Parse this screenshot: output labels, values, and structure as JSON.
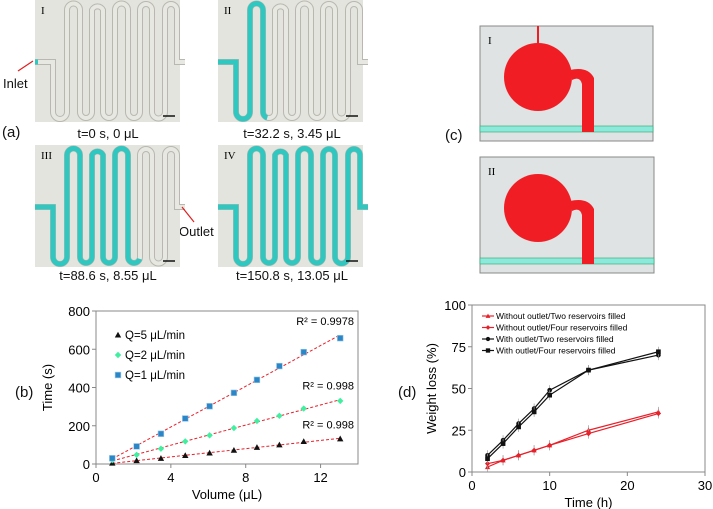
{
  "panel_a": {
    "label": "(a)",
    "inlet_label": "Inlet",
    "outlet_label": "Outlet",
    "photos": [
      {
        "roman": "I",
        "caption": "t=0 s, 0 μL",
        "fill_fraction": 0.0
      },
      {
        "roman": "II",
        "caption": "t=32.2 s, 3.45 μL",
        "fill_fraction": 0.26
      },
      {
        "roman": "III",
        "caption": "t=88.6 s, 8.55 μL",
        "fill_fraction": 0.655
      },
      {
        "roman": "IV",
        "caption": "t=150.8 s, 13.05 μL",
        "fill_fraction": 1.0
      }
    ],
    "colors": {
      "channel_fill": "#2fc7c0",
      "background": "#e4e4de",
      "arrow": "#e02020"
    }
  },
  "panel_c": {
    "label": "(c)",
    "diagrams": [
      {
        "roman": "I"
      },
      {
        "roman": "II"
      }
    ],
    "colors": {
      "reservoir": "#f01e24",
      "channel": "#8ee8dc",
      "background": "#dfe3e3"
    }
  },
  "panel_b_label": "(b)",
  "panel_d_label": "(d)",
  "chart_data": [
    {
      "type": "scatter",
      "xlabel": "Volume (μL)",
      "ylabel": "Time (s)",
      "xlim": [
        0,
        14
      ],
      "ylim": [
        0,
        800
      ],
      "xticks": [
        0,
        4,
        8,
        12
      ],
      "yticks": [
        0,
        200,
        400,
        600,
        800
      ],
      "grid": false,
      "legend_position": "top-left",
      "x": [
        0.87,
        2.17,
        3.47,
        4.77,
        6.07,
        7.37,
        8.6,
        9.8,
        11.1,
        13.05
      ],
      "series": [
        {
          "name": "Q=5 μL/min",
          "marker": "triangle",
          "color": "#111111",
          "values": [
            5,
            18,
            30,
            45,
            58,
            72,
            87,
            100,
            118,
            132
          ],
          "r2": "R² = 0.998"
        },
        {
          "name": "Q=2 μL/min",
          "marker": "diamond",
          "color": "#3ff0a0",
          "values": [
            20,
            48,
            80,
            118,
            150,
            188,
            225,
            252,
            290,
            330
          ],
          "r2": "R² = 0.998"
        },
        {
          "name": "Q=1 μL/min",
          "marker": "square",
          "color": "#2b86c8",
          "values": [
            30,
            92,
            158,
            238,
            302,
            372,
            440,
            512,
            585,
            658
          ],
          "r2": "R² = 0.9978"
        }
      ],
      "trendline": {
        "style": "dashed",
        "color": "#e8202a"
      }
    },
    {
      "type": "line",
      "xlabel": "Time (h)",
      "ylabel": "Weight loss (%)",
      "xlim": [
        0,
        30
      ],
      "ylim": [
        0,
        100
      ],
      "xticks": [
        0,
        10,
        20,
        30
      ],
      "yticks": [
        0,
        25,
        50,
        75,
        100
      ],
      "grid": false,
      "legend_position": "top-left",
      "x": [
        2,
        4,
        6,
        8,
        10,
        15,
        24
      ],
      "series": [
        {
          "name": "Without outlet/Two reservoirs filled",
          "marker": "triangle",
          "color": "#e8202a",
          "values": [
            3,
            7,
            10,
            13,
            16,
            25,
            36
          ]
        },
        {
          "name": "Without outlet/Four reservoirs filled",
          "marker": "diamond",
          "color": "#e8202a",
          "values": [
            5,
            7,
            10,
            13,
            16,
            23,
            35
          ]
        },
        {
          "name": "With outlet/Two reservoirs filled",
          "marker": "circle",
          "color": "#111111",
          "values": [
            10,
            19,
            29,
            38,
            49,
            61,
            70
          ]
        },
        {
          "name": "With outlet/Four reservoirs filled",
          "marker": "square",
          "color": "#111111",
          "values": [
            8,
            17,
            27,
            36,
            46,
            61,
            72
          ]
        }
      ]
    }
  ]
}
